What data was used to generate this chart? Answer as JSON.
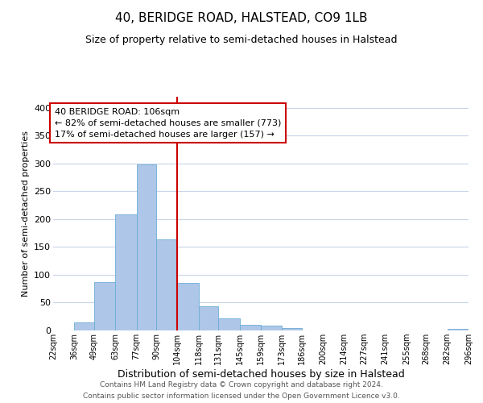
{
  "title": "40, BERIDGE ROAD, HALSTEAD, CO9 1LB",
  "subtitle": "Size of property relative to semi-detached houses in Halstead",
  "xlabel": "Distribution of semi-detached houses by size in Halstead",
  "ylabel": "Number of semi-detached properties",
  "bar_edges": [
    22,
    36,
    49,
    63,
    77,
    90,
    104,
    118,
    131,
    145,
    159,
    173,
    186,
    200,
    214,
    227,
    241,
    255,
    268,
    282,
    296
  ],
  "bar_heights": [
    0,
    15,
    87,
    208,
    298,
    163,
    85,
    44,
    22,
    10,
    9,
    5,
    0,
    0,
    0,
    0,
    0,
    0,
    0,
    3
  ],
  "bar_color": "#aec6e8",
  "bar_edgecolor": "#6aadd5",
  "vline_x": 104,
  "vline_color": "#cc0000",
  "ylim": [
    0,
    420
  ],
  "annotation_title": "40 BERIDGE ROAD: 106sqm",
  "annotation_line1": "← 82% of semi-detached houses are smaller (773)",
  "annotation_line2": "17% of semi-detached houses are larger (157) →",
  "annotation_box_color": "#ffffff",
  "annotation_box_edgecolor": "#cc0000",
  "footer_line1": "Contains HM Land Registry data © Crown copyright and database right 2024.",
  "footer_line2": "Contains public sector information licensed under the Open Government Licence v3.0.",
  "tick_labels": [
    "22sqm",
    "36sqm",
    "49sqm",
    "63sqm",
    "77sqm",
    "90sqm",
    "104sqm",
    "118sqm",
    "131sqm",
    "145sqm",
    "159sqm",
    "173sqm",
    "186sqm",
    "200sqm",
    "214sqm",
    "227sqm",
    "241sqm",
    "255sqm",
    "268sqm",
    "282sqm",
    "296sqm"
  ],
  "background_color": "#ffffff",
  "grid_color": "#c8d4e8",
  "yticks": [
    0,
    50,
    100,
    150,
    200,
    250,
    300,
    350,
    400
  ],
  "title_fontsize": 11,
  "subtitle_fontsize": 9,
  "xlabel_fontsize": 9,
  "ylabel_fontsize": 8,
  "xtick_fontsize": 7,
  "ytick_fontsize": 8,
  "footer_fontsize": 6.5
}
